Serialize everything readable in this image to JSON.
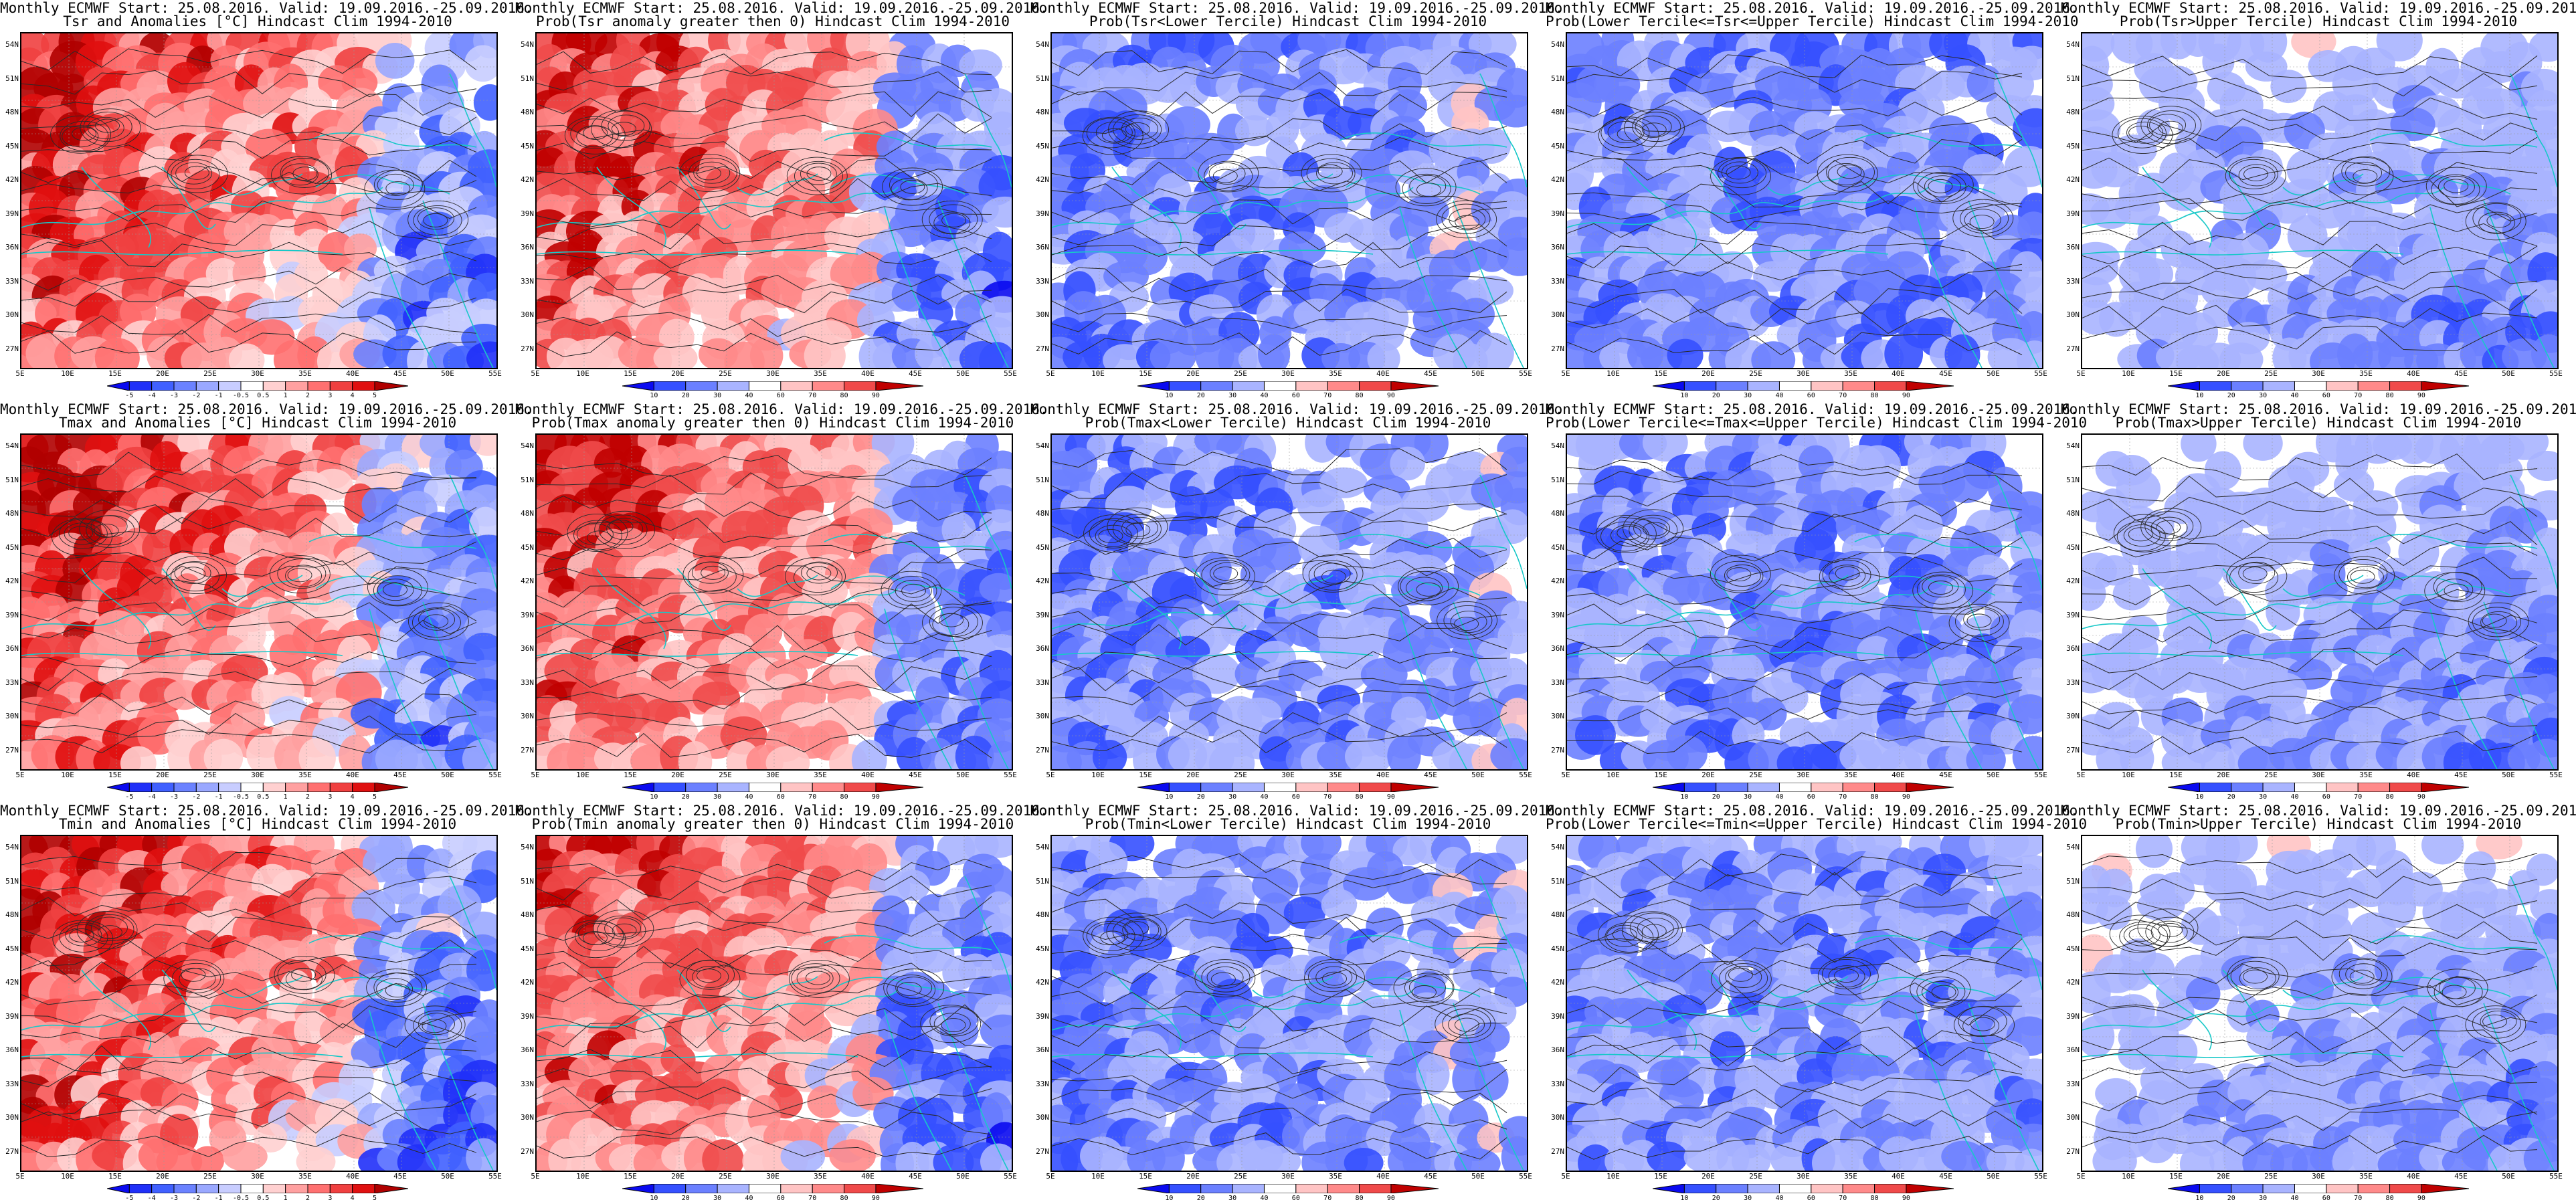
{
  "rows": [
    {
      "var": "Tsr",
      "panels": [
        {
          "title1": "Monthly ECMWF Start: 25.08.2016. Valid: 19.09.2016.-25.09.2016.",
          "title2": "Tsr and Anomalies [°C] Hindcast Clim 1994-2010",
          "type": "anom",
          "pattern": "warm-west"
        },
        {
          "title1": "Monthly ECMWF Start: 25.08.2016. Valid: 19.09.2016.-25.09.2016.",
          "title2": "Prob(Tsr anomaly greater then 0) Hindcast Clim 1994-2010",
          "type": "prob",
          "pattern": "warm-west"
        },
        {
          "title1": "Monthly ECMWF Start: 25.08.2016. Valid: 19.09.2016.-25.09.2016.",
          "title2": "Prob(Tsr<Lower Tercile) Hindcast Clim 1994-2010",
          "type": "prob",
          "pattern": "blue-heavy"
        },
        {
          "title1": "Monthly ECMWF Start: 25.08.2016. Valid: 19.09.2016.-25.09.2016.",
          "title2": "Prob(Lower Tercile<=Tsr<=Upper Tercile) Hindcast Clim 1994-2010",
          "type": "prob",
          "pattern": "blue-mid"
        },
        {
          "title1": "Monthly ECMWF Start: 25.08.2016. Valid: 19.09.2016.-25.09.2016.",
          "title2": "Prob(Tsr>Upper Tercile) Hindcast Clim 1994-2010",
          "type": "prob",
          "pattern": "blue-east"
        }
      ]
    },
    {
      "var": "Tmax",
      "panels": [
        {
          "title1": "Monthly ECMWF Start: 25.08.2016. Valid: 19.09.2016.-25.09.2016.",
          "title2": "Tmax and Anomalies [°C] Hindcast Clim 1994-2010",
          "type": "anom",
          "pattern": "warm-west"
        },
        {
          "title1": "Monthly ECMWF Start: 25.08.2016. Valid: 19.09.2016.-25.09.2016.",
          "title2": "Prob(Tmax anomaly greater then 0) Hindcast Clim 1994-2010",
          "type": "prob",
          "pattern": "warm-west"
        },
        {
          "title1": "Monthly ECMWF Start: 25.08.2016. Valid: 19.09.2016.-25.09.2016.",
          "title2": "Prob(Tmax<Lower Tercile) Hindcast Clim 1994-2010",
          "type": "prob",
          "pattern": "blue-heavy"
        },
        {
          "title1": "Monthly ECMWF Start: 25.08.2016. Valid: 19.09.2016.-25.09.2016.",
          "title2": "Prob(Lower Tercile<=Tmax<=Upper Tercile) Hindcast Clim 1994-2010",
          "type": "prob",
          "pattern": "blue-mid"
        },
        {
          "title1": "Monthly ECMWF Start: 25.08.2016. Valid: 19.09.2016.-25.09.2016.",
          "title2": "Prob(Tmax>Upper Tercile) Hindcast Clim 1994-2010",
          "type": "prob",
          "pattern": "blue-east"
        }
      ]
    },
    {
      "var": "Tmin",
      "panels": [
        {
          "title1": "Monthly ECMWF Start: 25.08.2016. Valid: 19.09.2016.-25.09.2016.",
          "title2": "Tmin and Anomalies [°C] Hindcast Clim 1994-2010",
          "type": "anom",
          "pattern": "warm-west"
        },
        {
          "title1": "Monthly ECMWF Start: 25.08.2016. Valid: 19.09.2016.-25.09.2016.",
          "title2": "Prob(Tmin anomaly greater then 0) Hindcast Clim 1994-2010",
          "type": "prob",
          "pattern": "warm-west"
        },
        {
          "title1": "Monthly ECMWF Start: 25.08.2016. Valid: 19.09.2016.-25.09.2016.",
          "title2": "Prob(Tmin<Lower Tercile) Hindcast Clim 1994-2010",
          "type": "prob",
          "pattern": "blue-heavy"
        },
        {
          "title1": "Monthly ECMWF Start: 25.08.2016. Valid: 19.09.2016.-25.09.2016.",
          "title2": "Prob(Lower Tercile<=Tmin<=Upper Tercile) Hindcast Clim 1994-2010",
          "type": "prob",
          "pattern": "blue-mid"
        },
        {
          "title1": "Monthly ECMWF Start: 25.08.2016. Valid: 19.09.2016.-25.09.2016.",
          "title2": "Prob(Tmin>Upper Tercile) Hindcast Clim 1994-2010",
          "type": "prob",
          "pattern": "blue-east"
        }
      ]
    }
  ],
  "lat_labels": [
    "54N",
    "51N",
    "48N",
    "45N",
    "42N",
    "39N",
    "36N",
    "33N",
    "30N",
    "27N"
  ],
  "lon_labels": [
    "5E",
    "10E",
    "15E",
    "20E",
    "25E",
    "30E",
    "35E",
    "40E",
    "45E",
    "50E",
    "55E"
  ],
  "anom_scale": {
    "labels": [
      "-5",
      "-4",
      "-3",
      "-2",
      "-1",
      "-0.5",
      "0.5",
      "1",
      "2",
      "3",
      "4",
      "5"
    ],
    "colors": [
      "#0a0af0",
      "#2030f8",
      "#4060ff",
      "#6b82ff",
      "#9aa8ff",
      "#c8cdff",
      "#ffffff",
      "#ffd0d0",
      "#ffa0a0",
      "#ff7070",
      "#f04040",
      "#e01010",
      "#b00000"
    ]
  },
  "prob_scale": {
    "labels": [
      "10",
      "20",
      "30",
      "40",
      "60",
      "70",
      "80",
      "90"
    ],
    "colors": [
      "#0a0af0",
      "#3550ff",
      "#6b80ff",
      "#a9b4ff",
      "#ffffff",
      "#ffc4c4",
      "#ff8a8a",
      "#f04a4a",
      "#c00000"
    ]
  },
  "colors": {
    "contour": "#2a2a2a",
    "coast": "#18c8c8",
    "grid": "#9a9a9a"
  }
}
